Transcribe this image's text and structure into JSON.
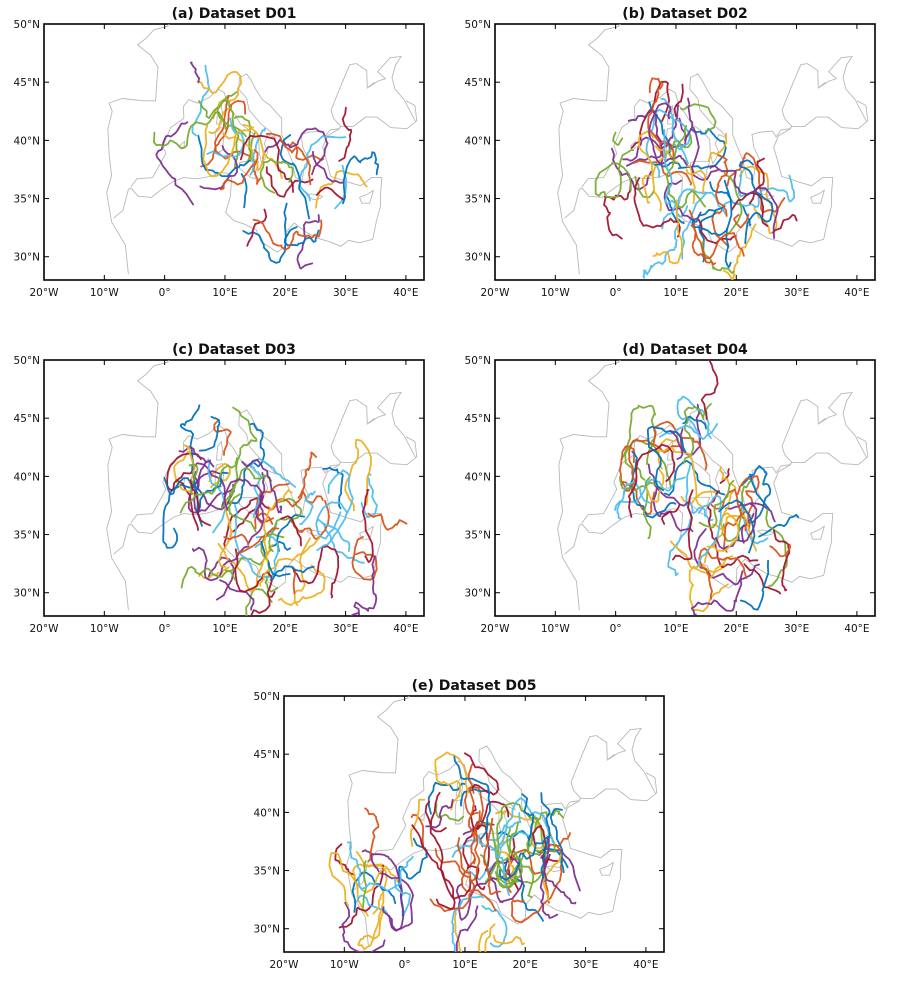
{
  "figure": {
    "panels": [
      {
        "id": "a",
        "title": "(a) Dataset D01",
        "density": 40,
        "seed": 11
      },
      {
        "id": "b",
        "title": "(b) Dataset D02",
        "density": 60,
        "seed": 23
      },
      {
        "id": "c",
        "title": "(c) Dataset D03",
        "density": 75,
        "seed": 37
      },
      {
        "id": "d",
        "title": "(d) Dataset D04",
        "density": 60,
        "seed": 51
      },
      {
        "id": "e",
        "title": "(e) Dataset D05",
        "density": 80,
        "seed": 67
      }
    ],
    "x_ticks": [
      {
        "value": -20,
        "label": "20°W"
      },
      {
        "value": -10,
        "label": "10°W"
      },
      {
        "value": 0,
        "label": "0°"
      },
      {
        "value": 10,
        "label": "10°E"
      },
      {
        "value": 20,
        "label": "20°E"
      },
      {
        "value": 30,
        "label": "30°E"
      },
      {
        "value": 40,
        "label": "40°E"
      }
    ],
    "y_ticks": [
      {
        "value": 30,
        "label": "30°N"
      },
      {
        "value": 35,
        "label": "35°N"
      },
      {
        "value": 40,
        "label": "40°N"
      },
      {
        "value": 45,
        "label": "45°N"
      },
      {
        "value": 50,
        "label": "50°N"
      }
    ],
    "extent": {
      "lon": [
        -20,
        43
      ],
      "lat": [
        28,
        50
      ]
    },
    "track_colors": [
      "#0072bd",
      "#d95319",
      "#edb120",
      "#7e2f8e",
      "#77ac30",
      "#4dbeee",
      "#a2142f"
    ],
    "coastline_color": "#b8b8b8"
  }
}
